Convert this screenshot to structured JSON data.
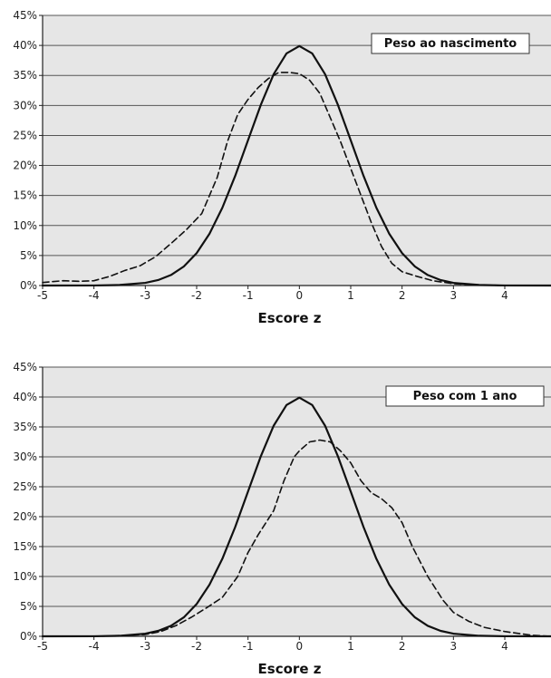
{
  "chart_data": [
    {
      "type": "line",
      "title": "",
      "legend_label": "Peso ao nascimento",
      "legend_position": "top-right",
      "xlabel": "Escore z",
      "ylabel": "",
      "xlim": [
        -5,
        4.9
      ],
      "ylim": [
        0,
        45
      ],
      "grid": true,
      "x_ticks": [
        -5,
        -4,
        -3,
        -2,
        -1,
        0,
        1,
        2,
        3,
        4
      ],
      "x_tick_labels": [
        "-5",
        "-4",
        "-3",
        "-2",
        "-1",
        "0",
        "1",
        "2",
        "3",
        "4"
      ],
      "y_ticks": [
        0,
        5,
        10,
        15,
        20,
        25,
        30,
        35,
        40,
        45
      ],
      "y_tick_labels": [
        "0%",
        "5%",
        "10%",
        "15%",
        "20%",
        "25%",
        "30%",
        "35%",
        "40%",
        "45%"
      ],
      "plot_background": "#e6e6e6",
      "series": [
        {
          "style": "solid",
          "color": "#111111",
          "x": [
            -5,
            -4,
            -3.5,
            -3,
            -2.75,
            -2.5,
            -2.25,
            -2,
            -1.75,
            -1.5,
            -1.25,
            -1,
            -0.75,
            -0.5,
            -0.25,
            0,
            0.25,
            0.5,
            0.75,
            1,
            1.25,
            1.5,
            1.75,
            2,
            2.25,
            2.5,
            2.75,
            3,
            3.5,
            4,
            4.9
          ],
          "y": [
            0,
            0.01,
            0.09,
            0.44,
            0.91,
            1.75,
            3.17,
            5.4,
            8.63,
            12.95,
            18.26,
            24.2,
            30.11,
            35.21,
            38.67,
            39.9,
            38.67,
            35.21,
            30.11,
            24.2,
            18.26,
            12.95,
            8.63,
            5.4,
            3.17,
            1.75,
            0.91,
            0.44,
            0.09,
            0.01,
            0
          ]
        },
        {
          "style": "dashed",
          "color": "#111111",
          "x": [
            -5,
            -4.6,
            -4.3,
            -4,
            -3.7,
            -3.4,
            -3.1,
            -2.8,
            -2.5,
            -2.2,
            -1.9,
            -1.6,
            -1.4,
            -1.2,
            -1,
            -0.8,
            -0.6,
            -0.4,
            -0.2,
            0,
            0.2,
            0.4,
            0.6,
            0.8,
            1,
            1.2,
            1.4,
            1.6,
            1.8,
            2,
            2.3,
            2.6,
            3,
            3.5,
            4,
            4.9
          ],
          "y": [
            0.5,
            0.8,
            0.7,
            0.8,
            1.5,
            2.5,
            3.3,
            4.8,
            7,
            9.3,
            12,
            18,
            24,
            28.5,
            31,
            33,
            34.5,
            35.5,
            35.5,
            35.3,
            34.2,
            32,
            28,
            24,
            19.5,
            15,
            10.5,
            6.5,
            3.7,
            2.3,
            1.5,
            0.8,
            0.3,
            0.1,
            0,
            0
          ]
        }
      ]
    },
    {
      "type": "line",
      "title": "",
      "legend_label": "Peso com 1 ano",
      "legend_position": "top-right",
      "xlabel": "Escore z",
      "ylabel": "",
      "xlim": [
        -5,
        4.9
      ],
      "ylim": [
        0,
        45
      ],
      "grid": true,
      "x_ticks": [
        -5,
        -4,
        -3,
        -2,
        -1,
        0,
        1,
        2,
        3,
        4
      ],
      "x_tick_labels": [
        "-5",
        "-4",
        "-3",
        "-2",
        "-1",
        "0",
        "1",
        "2",
        "3",
        "4"
      ],
      "y_ticks": [
        0,
        5,
        10,
        15,
        20,
        25,
        30,
        35,
        40,
        45
      ],
      "y_tick_labels": [
        "0%",
        "5%",
        "10%",
        "15%",
        "20%",
        "25%",
        "30%",
        "35%",
        "40%",
        "45%"
      ],
      "plot_background": "#e6e6e6",
      "series": [
        {
          "style": "solid",
          "color": "#111111",
          "x": [
            -5,
            -4,
            -3.5,
            -3,
            -2.75,
            -2.5,
            -2.25,
            -2,
            -1.75,
            -1.5,
            -1.25,
            -1,
            -0.75,
            -0.5,
            -0.25,
            0,
            0.25,
            0.5,
            0.75,
            1,
            1.25,
            1.5,
            1.75,
            2,
            2.25,
            2.5,
            2.75,
            3,
            3.5,
            4,
            4.9
          ],
          "y": [
            0,
            0.01,
            0.09,
            0.44,
            0.91,
            1.75,
            3.17,
            5.4,
            8.63,
            12.95,
            18.26,
            24.2,
            30.11,
            35.21,
            38.67,
            39.9,
            38.67,
            35.21,
            30.11,
            24.2,
            18.26,
            12.95,
            8.63,
            5.4,
            3.17,
            1.75,
            0.91,
            0.44,
            0.09,
            0.01,
            0
          ]
        },
        {
          "style": "dashed",
          "color": "#111111",
          "x": [
            -5,
            -4,
            -3.5,
            -3,
            -2.7,
            -2.4,
            -2.1,
            -1.8,
            -1.5,
            -1.2,
            -1,
            -0.8,
            -0.5,
            -0.3,
            -0.1,
            0,
            0.2,
            0.4,
            0.6,
            0.8,
            1,
            1.2,
            1.4,
            1.6,
            1.8,
            2,
            2.2,
            2.5,
            2.8,
            3,
            3.3,
            3.6,
            4,
            4.5,
            4.9
          ],
          "y": [
            0,
            0,
            0.1,
            0.3,
            0.8,
            1.8,
            3.2,
            4.8,
            6.5,
            10,
            14,
            17,
            21,
            26,
            30,
            31,
            32.5,
            32.8,
            32.5,
            31,
            29,
            26,
            24,
            23,
            21.5,
            19,
            15,
            10,
            6,
            4,
            2.5,
            1.5,
            0.8,
            0.2,
            0
          ]
        }
      ]
    }
  ]
}
